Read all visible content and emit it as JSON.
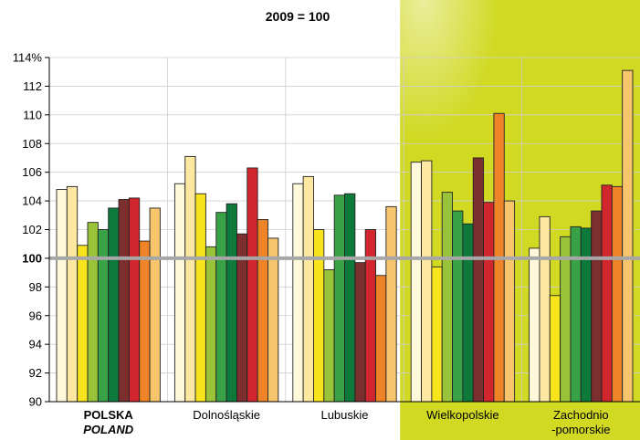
{
  "chart_data": {
    "type": "bar",
    "title": "2009 = 100",
    "categories": [
      {
        "lines": [
          "POLSKA",
          "POLAND"
        ],
        "styles": [
          "bold",
          "bolditalic"
        ]
      },
      {
        "lines": [
          "Dolnośląskie"
        ],
        "styles": [
          "normal"
        ]
      },
      {
        "lines": [
          "Lubuskie"
        ],
        "styles": [
          "normal"
        ]
      },
      {
        "lines": [
          "Wielkopolskie"
        ],
        "styles": [
          "normal"
        ]
      },
      {
        "lines": [
          "Zachodnio",
          "-pomorskie"
        ],
        "styles": [
          "normal",
          "normal"
        ]
      }
    ],
    "ylim": [
      90,
      114
    ],
    "yticks": [
      {
        "value": 90,
        "label": "90"
      },
      {
        "value": 92,
        "label": "92"
      },
      {
        "value": 94,
        "label": "94"
      },
      {
        "value": 96,
        "label": "96"
      },
      {
        "value": 98,
        "label": "98"
      },
      {
        "value": 100,
        "label": "100",
        "bold": true
      },
      {
        "value": 102,
        "label": "102"
      },
      {
        "value": 104,
        "label": "104"
      },
      {
        "value": 106,
        "label": "106"
      },
      {
        "value": 108,
        "label": "108"
      },
      {
        "value": 110,
        "label": "110"
      },
      {
        "value": 112,
        "label": "112"
      },
      {
        "value": 114,
        "label": "114%"
      }
    ],
    "reference_line": 100,
    "series_colors": [
      "#fff9dc",
      "#fde8a2",
      "#f7e41c",
      "#99c43a",
      "#3aa246",
      "#0d7a3c",
      "#7b2f2f",
      "#d2262f",
      "#ee8427",
      "#f6c56c"
    ],
    "values": [
      [
        104.8,
        105.0,
        100.9,
        102.5,
        102.0,
        103.5,
        104.1,
        104.2,
        101.2,
        103.5
      ],
      [
        105.2,
        107.1,
        104.5,
        100.8,
        103.2,
        103.8,
        101.7,
        106.3,
        102.7,
        101.4
      ],
      [
        105.2,
        105.7,
        102.0,
        99.2,
        104.4,
        104.5,
        99.7,
        102.0,
        98.8,
        103.6
      ],
      [
        106.7,
        106.8,
        99.4,
        104.6,
        103.3,
        102.4,
        107.0,
        103.9,
        110.1,
        104.0
      ],
      [
        100.7,
        102.9,
        97.4,
        101.5,
        102.2,
        102.1,
        103.3,
        105.1,
        105.0,
        113.1
      ]
    ],
    "highlight_categories": [
      3,
      4
    ],
    "highlight_color": "#d1d923",
    "grid": true
  }
}
